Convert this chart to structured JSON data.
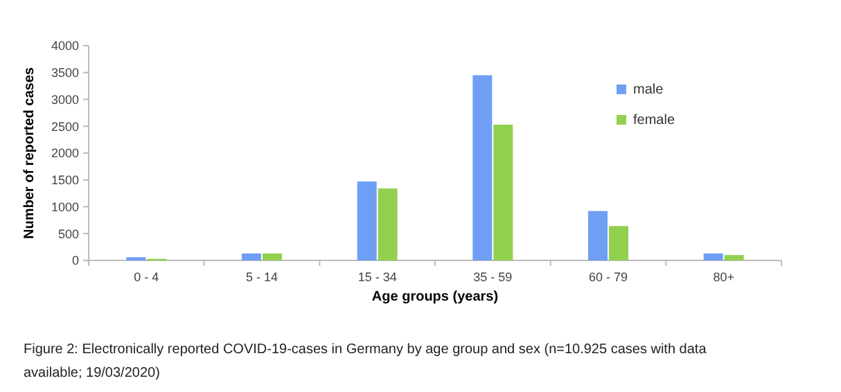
{
  "chart_data": {
    "type": "bar",
    "xlabel": "Age groups (years)",
    "ylabel": "Number of reported cases",
    "categories": [
      "0 - 4",
      "5 - 14",
      "15 - 34",
      "35 - 59",
      "60 - 79",
      "80+"
    ],
    "series": [
      {
        "name": "male",
        "color": "#6f9ff5",
        "values": [
          60,
          130,
          1470,
          3450,
          920,
          130
        ]
      },
      {
        "name": "female",
        "color": "#92d050",
        "values": [
          30,
          130,
          1340,
          2530,
          640,
          100
        ]
      }
    ],
    "ylim": [
      0,
      4000
    ],
    "yticks": [
      0,
      500,
      1000,
      1500,
      2000,
      2500,
      3000,
      3500,
      4000
    ],
    "legend": "top right",
    "annotations": [
      "Figure 2: Electronically reported COVID-19-cases in Germany by age group and sex (n=10.925 cases with data available; 19/03/2020)"
    ]
  }
}
